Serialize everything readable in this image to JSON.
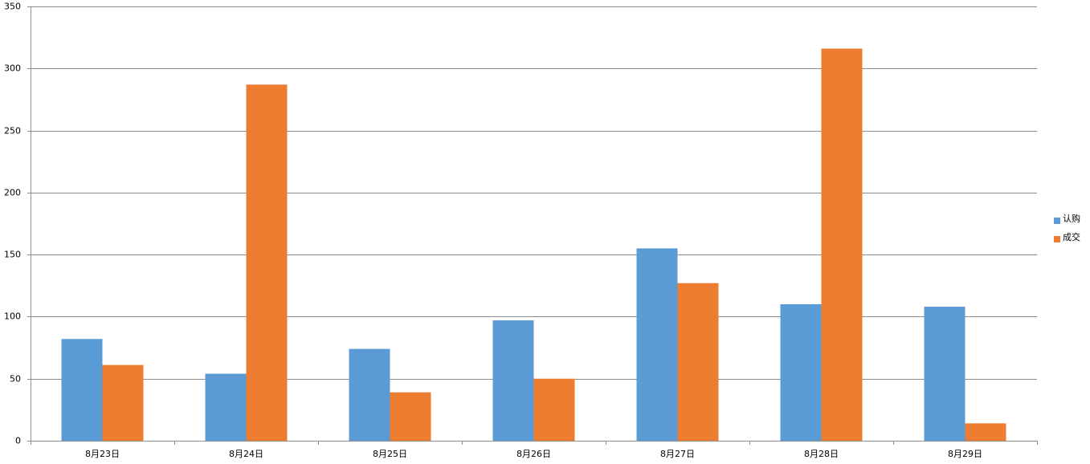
{
  "chart_data": {
    "type": "bar",
    "categories": [
      "8月23日",
      "8月24日",
      "8月25日",
      "8月26日",
      "8月27日",
      "8月28日",
      "8月29日"
    ],
    "series": [
      {
        "name": "认购",
        "color": "#5b9bd5",
        "values": [
          82,
          54,
          74,
          97,
          155,
          110,
          108
        ]
      },
      {
        "name": "成交",
        "color": "#ed7d31",
        "values": [
          61,
          287,
          39,
          50,
          127,
          316,
          14
        ]
      }
    ],
    "ylim": [
      0,
      350
    ],
    "yticks": [
      0,
      50,
      100,
      150,
      200,
      250,
      300,
      350
    ],
    "grid": true,
    "legend": "right"
  }
}
